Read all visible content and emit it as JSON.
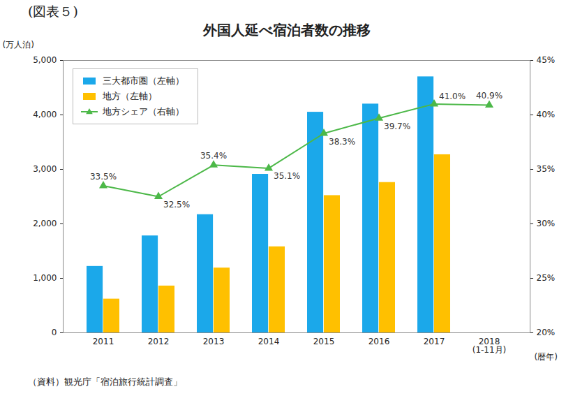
{
  "chart_data": {
    "type": "bar",
    "header": "(図表５)",
    "title": "外国人延べ宿泊者数の推移",
    "source": "（資料）観光庁「宿泊旅行統計調査」",
    "ylabel": "(万人泊)",
    "xlabel": "(暦年)",
    "categories": [
      "2011",
      "2012",
      "2013",
      "2014",
      "2015",
      "2016",
      "2017",
      "2018\n(1-11月)"
    ],
    "series": [
      {
        "name": "三大都市圏（左軸）",
        "type": "bar",
        "color": "#1ba8ea",
        "values": [
          1220,
          1780,
          2170,
          2910,
          4050,
          4200,
          4700,
          null
        ]
      },
      {
        "name": "地方（左軸）",
        "type": "bar",
        "color": "#ffc000",
        "values": [
          620,
          860,
          1190,
          1580,
          2520,
          2760,
          3270,
          null
        ]
      },
      {
        "name": "地方シェア（右軸）",
        "type": "line",
        "axis": "y2",
        "color": "#4cb848",
        "marker": "triangle",
        "data_labels": true,
        "values": [
          33.5,
          32.5,
          35.4,
          35.1,
          38.3,
          39.7,
          41.0,
          40.9
        ],
        "value_labels": [
          "33.5%",
          "32.5%",
          "35.4%",
          "35.1%",
          "38.3%",
          "39.7%",
          "41.0%",
          "40.9%"
        ]
      }
    ],
    "ylim": [
      0,
      5000
    ],
    "yticks": [
      0,
      {
        "value": 1000,
        "label": "1,000"
      },
      {
        "value": 2000,
        "label": "2,000"
      },
      {
        "value": 3000,
        "label": "3,000"
      },
      {
        "value": 4000,
        "label": "4,000"
      },
      {
        "value": 5000,
        "label": "5,000"
      }
    ],
    "y2lim": [
      20,
      45
    ],
    "y2ticks": [
      {
        "value": 20,
        "label": "20%"
      },
      {
        "value": 25,
        "label": "25%"
      },
      {
        "value": 30,
        "label": "30%"
      },
      {
        "value": 35,
        "label": "35%"
      },
      {
        "value": 40,
        "label": "40%"
      },
      {
        "value": 45,
        "label": "45%"
      }
    ],
    "grid": false,
    "legend": "top-left"
  }
}
